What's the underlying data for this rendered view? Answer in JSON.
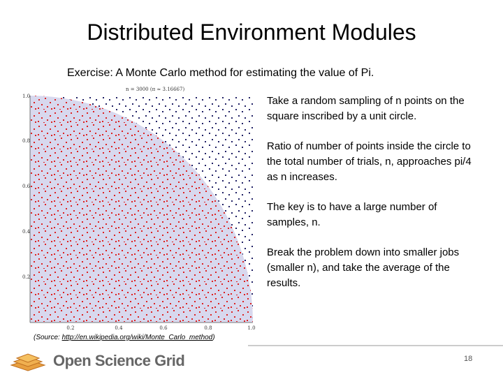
{
  "title": "Distributed Environment Modules",
  "subtitle": "Exercise:  A Monte Carlo method for estimating the value of Pi.",
  "figure": {
    "caption": "n = 3000 (π ≈ 3.16667)",
    "y_ticks": [
      "1.0",
      "0.8",
      "0.6",
      "0.4",
      "0.2"
    ],
    "x_ticks": [
      "0.2",
      "0.4",
      "0.6",
      "0.8",
      "1.0"
    ]
  },
  "bullets": [
    "Take a random sampling of n points on the square inscribed by a unit circle.",
    "Ratio of number of points inside the circle to the total number of trials, n, approaches pi/4 as n increases.",
    "The key is to have a large number of samples, n.",
    "Break the problem down into smaller jobs (smaller n), and take the average of the results."
  ],
  "source": {
    "prefix": "(Source: ",
    "link": "http://en.wikipedia.org/wiki/Monte_Carlo_method",
    "suffix": ")"
  },
  "footer": {
    "logo": "Open Science Grid",
    "page": "18"
  }
}
